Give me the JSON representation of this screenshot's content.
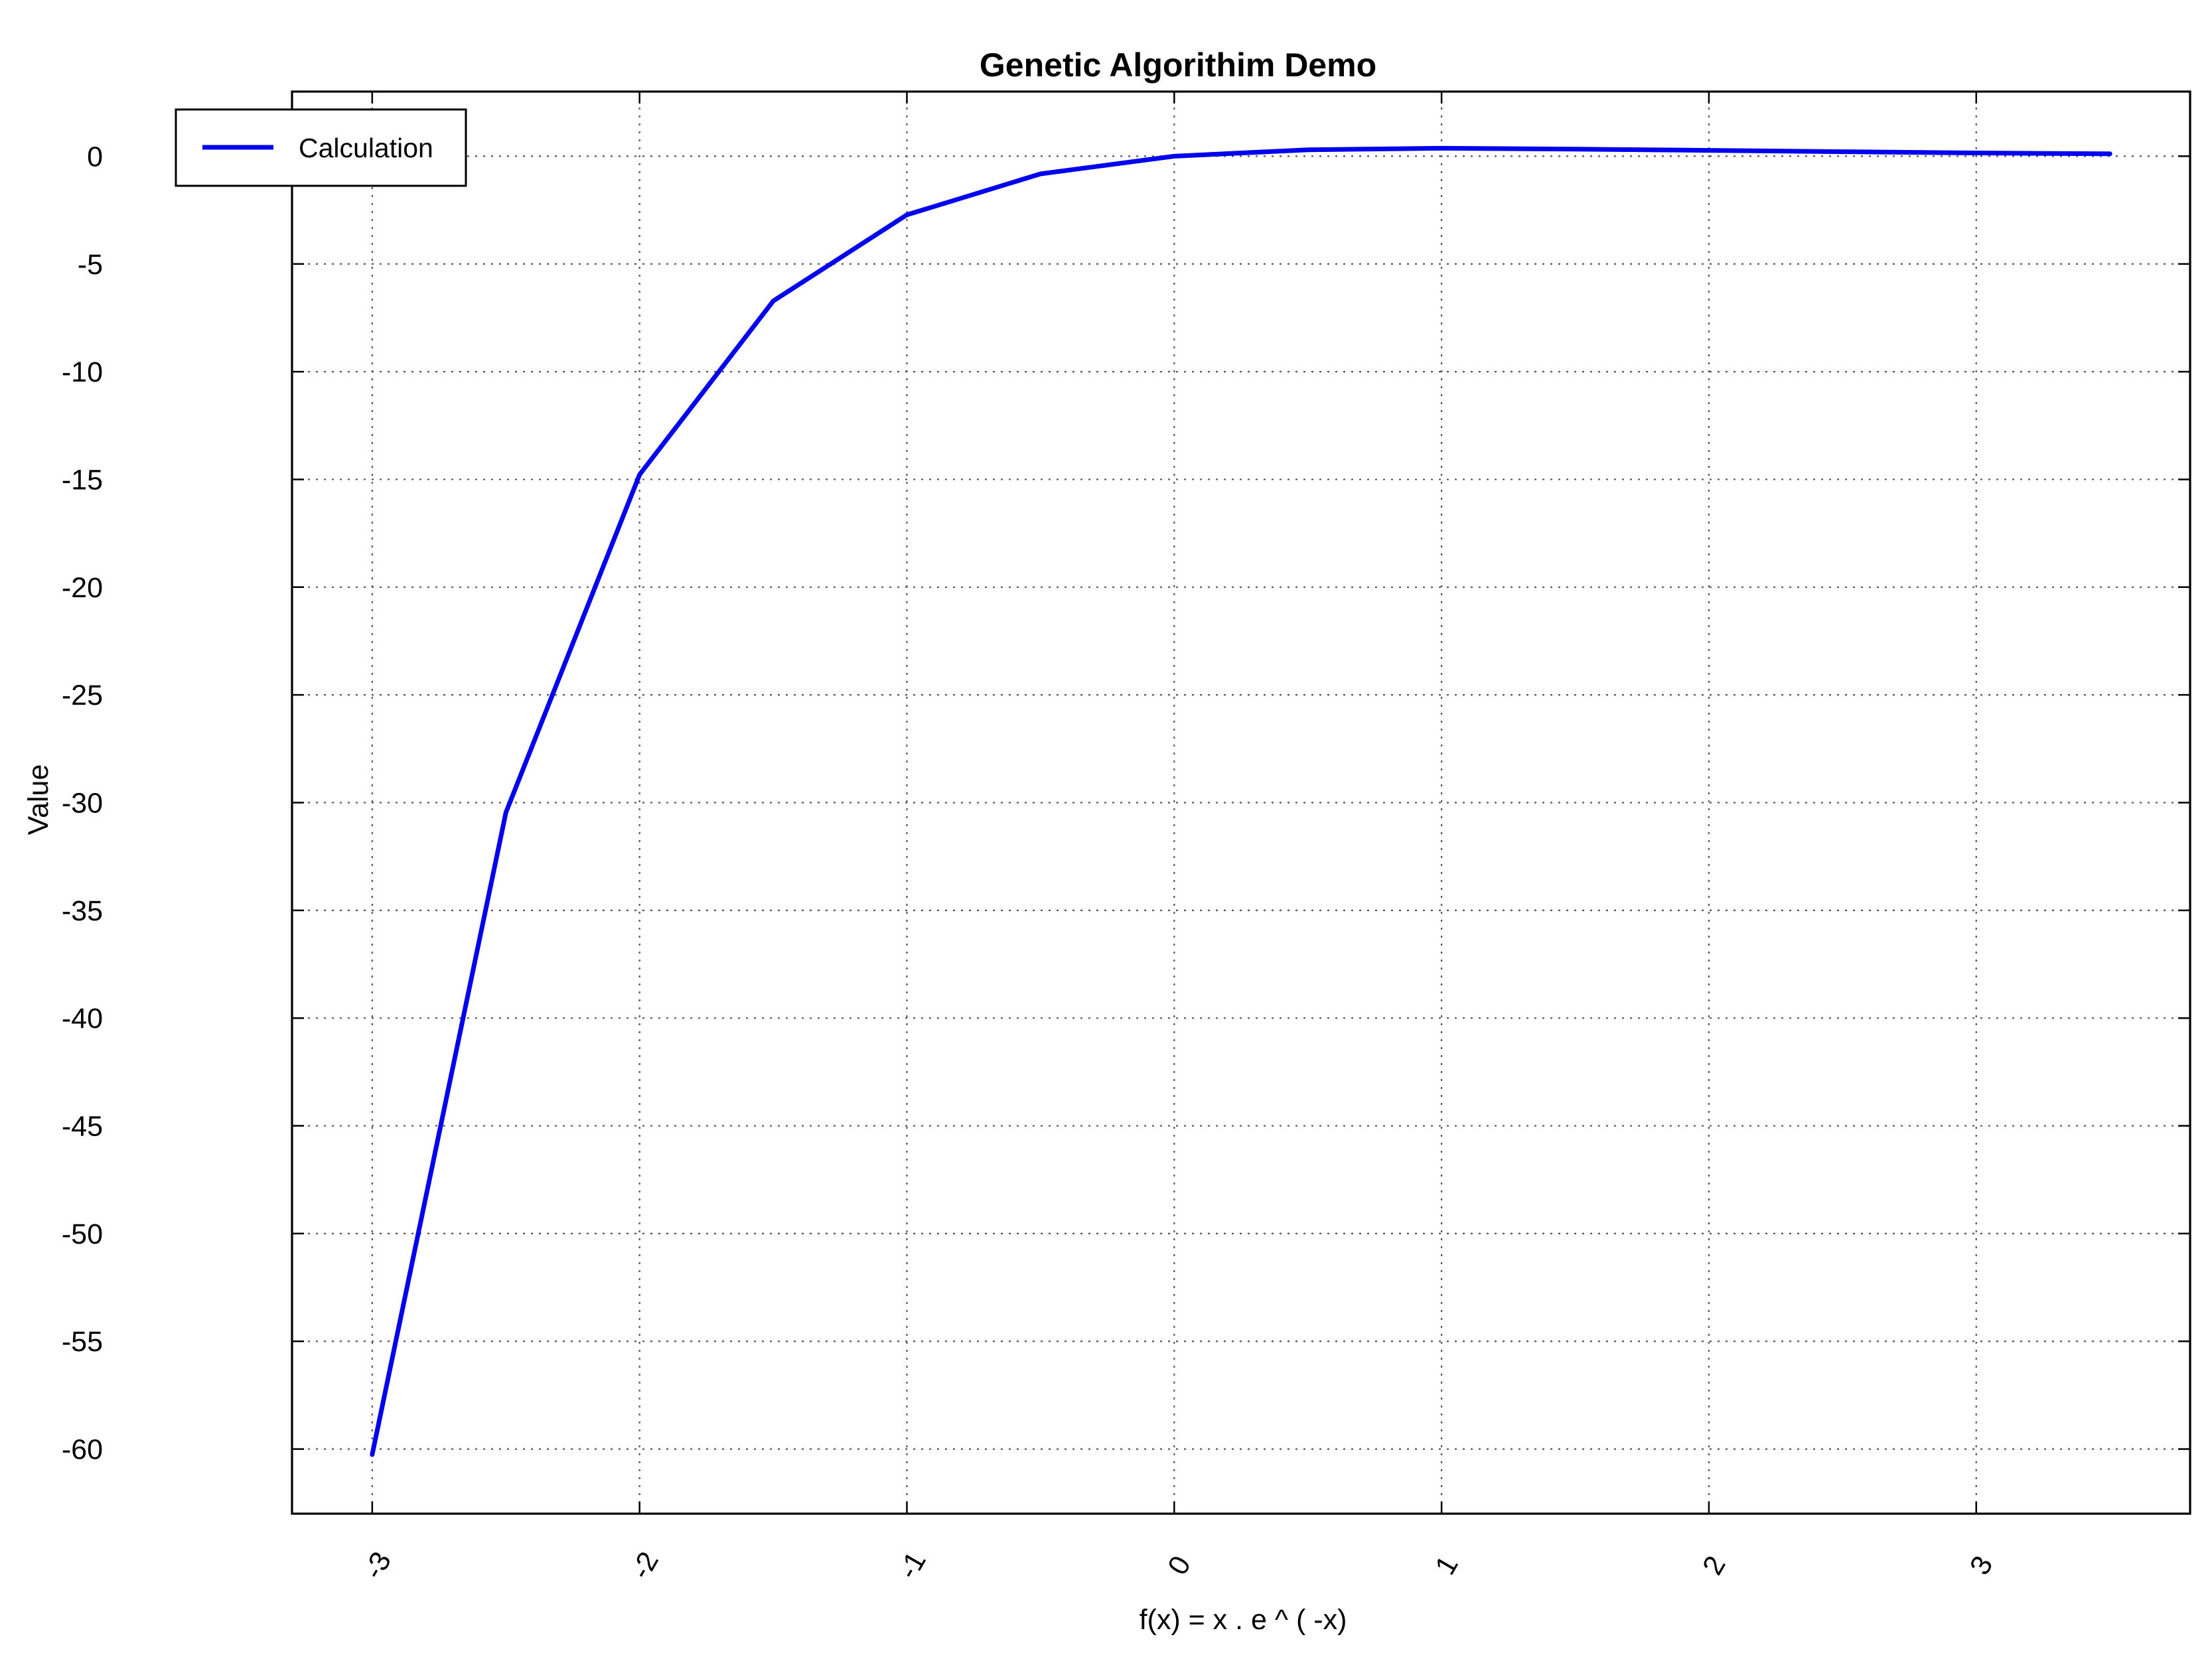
{
  "chart_data": {
    "type": "line",
    "title": "Genetic Algorithim Demo",
    "xlabel": "f(x) = x . e ^ ( -x)",
    "ylabel": "Value",
    "xlim": [
      -3.3,
      3.8
    ],
    "ylim": [
      -63,
      3
    ],
    "x_ticks": [
      -3,
      -2,
      -1,
      0,
      1,
      2,
      3
    ],
    "x_tick_labels": [
      "-3",
      "-2",
      "-1",
      "0",
      "1",
      "2",
      "3"
    ],
    "y_ticks": [
      0,
      -5,
      -10,
      -15,
      -20,
      -25,
      -30,
      -35,
      -40,
      -45,
      -50,
      -55,
      -60
    ],
    "y_tick_labels": [
      "0",
      "-5",
      "-10",
      "-15",
      "-20",
      "-25",
      "-30",
      "-35",
      "-40",
      "-45",
      "-50",
      "-55",
      "-60"
    ],
    "grid": true,
    "legend": "top-left",
    "series": [
      {
        "name": "Calculation",
        "color": "#0000ee",
        "x": [
          -3,
          -2.5,
          -2,
          -1.5,
          -1,
          -0.5,
          0,
          0.5,
          1,
          1.5,
          2,
          2.5,
          3,
          3.5
        ],
        "y": [
          -60.26,
          -30.46,
          -14.78,
          -6.72,
          -2.72,
          -0.82,
          0,
          0.3,
          0.37,
          0.33,
          0.27,
          0.21,
          0.15,
          0.11
        ]
      }
    ]
  }
}
